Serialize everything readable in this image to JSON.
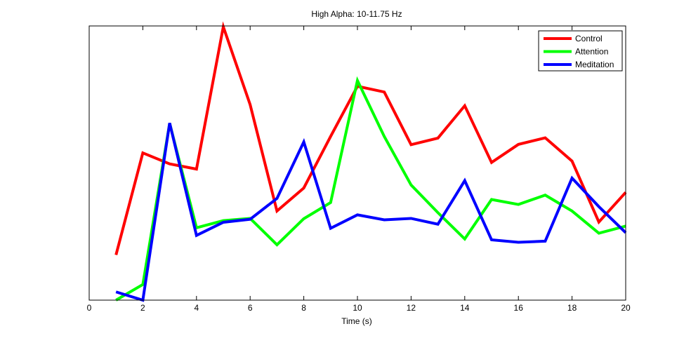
{
  "chart_data": {
    "type": "line",
    "title": "High Alpha: 10-11.75 Hz",
    "xlabel": "Time (s)",
    "ylabel": "",
    "xlim": [
      0,
      20
    ],
    "ylim": [
      0,
      1
    ],
    "xticks": [
      0,
      2,
      4,
      6,
      8,
      10,
      12,
      14,
      16,
      18,
      20
    ],
    "yticks": [],
    "grid": false,
    "legend_position": "top-right",
    "x": [
      1,
      2,
      3,
      4,
      5,
      6,
      7,
      8,
      9,
      10,
      11,
      12,
      13,
      14,
      15,
      16,
      17,
      18,
      19,
      20
    ],
    "series": [
      {
        "name": "Control",
        "color": "#ff0000",
        "values": [
          0.165,
          0.537,
          0.497,
          0.478,
          0.997,
          0.713,
          0.325,
          0.409,
          0.597,
          0.78,
          0.759,
          0.567,
          0.591,
          0.709,
          0.502,
          0.568,
          0.592,
          0.507,
          0.285,
          0.393
        ]
      },
      {
        "name": "Attention",
        "color": "#00ff00",
        "values": [
          0.0,
          0.057,
          0.645,
          0.264,
          0.29,
          0.298,
          0.202,
          0.297,
          0.356,
          0.801,
          0.597,
          0.42,
          0.319,
          0.223,
          0.367,
          0.349,
          0.383,
          0.325,
          0.244,
          0.27
        ]
      },
      {
        "name": "Meditation",
        "color": "#0000ff",
        "values": [
          0.03,
          0.0,
          0.646,
          0.236,
          0.284,
          0.295,
          0.371,
          0.577,
          0.262,
          0.311,
          0.293,
          0.298,
          0.277,
          0.436,
          0.22,
          0.211,
          0.215,
          0.445,
          0.341,
          0.246
        ]
      }
    ]
  }
}
